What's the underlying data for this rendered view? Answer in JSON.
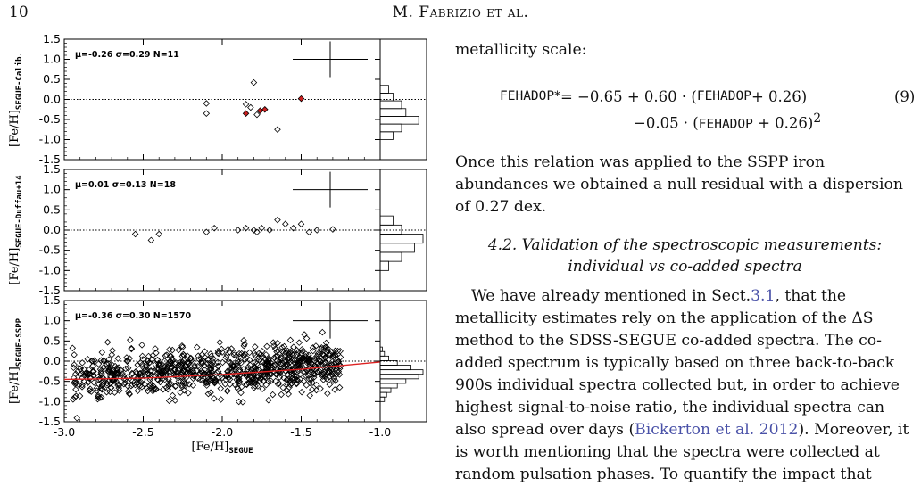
{
  "header": {
    "page_number": "10",
    "running_title": "M. Fabrizio et al."
  },
  "figure": {
    "x_label_main": "[Fe/H]",
    "x_label_sub": "SEGUE",
    "x_ticks": [
      "-3.0",
      "-2.5",
      "-2.0",
      "-1.5",
      "-1.0"
    ],
    "y_ticks": [
      "1.5",
      "1.0",
      "0.5",
      "0.0",
      "-0.5",
      "-1.0",
      "-1.5"
    ],
    "panels": [
      {
        "ylabel_main": "[Fe/H]",
        "ylabel_sub": "SEGUE-Calib.",
        "stats": "μ=-0.26   σ=0.29   N=11"
      },
      {
        "ylabel_main": "[Fe/H]",
        "ylabel_sub": "SEGUE-Duffau+14",
        "stats": "μ=0.01   σ=0.13   N=18"
      },
      {
        "ylabel_main": "[Fe/H]",
        "ylabel_sub": "SEGUE-SSPP",
        "stats": "μ=-0.36   σ=0.30   N=1570"
      }
    ]
  },
  "chart_data": [
    {
      "type": "scatter",
      "title": "",
      "xlabel": "[Fe/H]SEGUE",
      "ylabel": "[Fe/H]SEGUE-Calib.",
      "xlim": [
        -3.0,
        -1.0
      ],
      "ylim": [
        -1.5,
        1.5
      ],
      "mean": -0.26,
      "sigma": 0.29,
      "n": 11,
      "points": [
        [
          -2.1,
          -0.1
        ],
        [
          -2.1,
          -0.35
        ],
        [
          -1.85,
          -0.12
        ],
        [
          -1.8,
          0.42
        ],
        [
          -1.78,
          -0.38
        ],
        [
          -1.65,
          -0.75
        ],
        [
          -1.82,
          -0.2
        ]
      ],
      "highlighted_points": [
        [
          -1.85,
          -0.35
        ],
        [
          -1.76,
          -0.28
        ],
        [
          -1.73,
          -0.25
        ],
        [
          -1.5,
          0.02
        ]
      ],
      "highlight_color": "#cc1f1f",
      "histogram": [
        0.2,
        0.3,
        0.5,
        0.6,
        0.9,
        0.5,
        0.3
      ]
    },
    {
      "type": "scatter",
      "title": "",
      "xlabel": "[Fe/H]SEGUE",
      "ylabel": "[Fe/H]SEGUE-Duffau+14",
      "xlim": [
        -3.0,
        -1.0
      ],
      "ylim": [
        -1.5,
        1.5
      ],
      "mean": 0.01,
      "sigma": 0.13,
      "n": 18,
      "points": [
        [
          -2.55,
          -0.1
        ],
        [
          -2.45,
          -0.25
        ],
        [
          -2.4,
          -0.1
        ],
        [
          -2.1,
          -0.05
        ],
        [
          -2.05,
          0.05
        ],
        [
          -1.9,
          0.0
        ],
        [
          -1.85,
          0.05
        ],
        [
          -1.8,
          0.0
        ],
        [
          -1.78,
          -0.05
        ],
        [
          -1.75,
          0.05
        ],
        [
          -1.7,
          0.0
        ],
        [
          -1.65,
          0.25
        ],
        [
          -1.6,
          0.15
        ],
        [
          -1.55,
          0.05
        ],
        [
          -1.5,
          0.15
        ],
        [
          -1.45,
          -0.05
        ],
        [
          -1.4,
          0.0
        ],
        [
          -1.3,
          0.02
        ]
      ],
      "histogram": [
        0.3,
        0.5,
        1.0,
        0.8,
        0.5,
        0.2
      ]
    },
    {
      "type": "scatter",
      "title": "",
      "xlabel": "[Fe/H]SEGUE",
      "ylabel": "[Fe/H]SEGUE-SSPP",
      "xlim": [
        -3.0,
        -1.0
      ],
      "ylim": [
        -1.5,
        1.5
      ],
      "mean": -0.36,
      "sigma": 0.3,
      "n": 1570,
      "trend_line": {
        "color": "#dd2222",
        "x": [
          -3.0,
          -2.5,
          -2.0,
          -1.5,
          -1.0
        ],
        "y": [
          -0.45,
          -0.42,
          -0.33,
          -0.2,
          -0.02
        ]
      },
      "histogram": [
        0.05,
        0.1,
        0.2,
        0.4,
        0.7,
        1.0,
        0.9,
        0.6,
        0.4,
        0.25,
        0.15,
        0.1
      ]
    }
  ],
  "text": {
    "intro": "metallicity scale:",
    "eq_lhs": "FEHADOP",
    "eq_sup": "*",
    "eq_rhs1": " = −0.65 + 0.60 · (",
    "eq_var1": "FEHADOP",
    "eq_rhs1b": " + 0.26)",
    "eq_number": "(9)",
    "eq_rhs2a": "−0.05 · (",
    "eq_var2": "FEHADOP",
    "eq_rhs2b": " + 0.26)",
    "eq_sup2": "2",
    "para1": "Once this relation was applied to the SSPP iron abundances we obtained a null residual with a dispersion of 0.27 dex.",
    "section_title_1": "4.2. Validation of the spectroscopic measurements:",
    "section_title_2": "individual vs co-added spectra",
    "p2_a": "We have already mentioned in Sect.",
    "p2_link": "3.1",
    "p2_b": ", that the metallicity estimates rely on the application of the ΔS method to the SDSS-SEGUE co-added spectra. The co-added spectrum is typically based on three back-to-back 900s individual spectra collected but, in order to achieve highest signal-to-noise ratio, the individual spectra can also spread over days (",
    "p2_cite": "Bickerton et al. 2012",
    "p2_c": "). Moreover, it is worth mentioning that the spectra were collected at random pulsation phases. To quantify the impact that"
  }
}
